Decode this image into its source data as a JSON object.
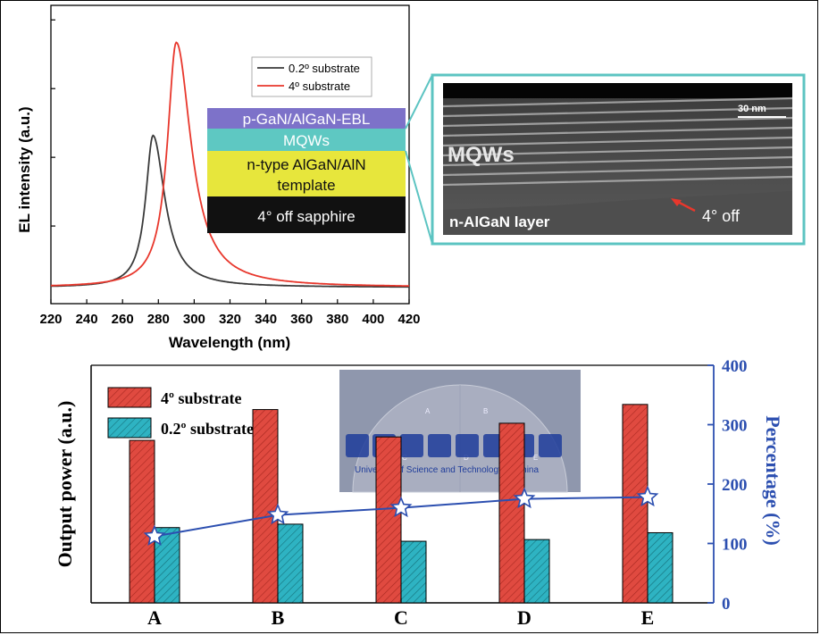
{
  "chart_data": [
    {
      "type": "line",
      "xlabel": "Wavelength (nm)",
      "ylabel": "EL intensity (a.u.)",
      "xlim": [
        220,
        420
      ],
      "xticks": [
        "220",
        "240",
        "260",
        "280",
        "300",
        "320",
        "340",
        "360",
        "380",
        "400",
        "420"
      ],
      "ylim": [
        0,
        1.05
      ],
      "legend_position": "top-right",
      "series": [
        {
          "name": "0.2º substrate",
          "color": "#3a3a3a",
          "peak": 277,
          "height": 0.62,
          "hwhm_left": 5,
          "hwhm_right": 8
        },
        {
          "name": "4º substrate",
          "color": "#e8372c",
          "peak": 290,
          "height": 1.0,
          "hwhm_left": 6,
          "hwhm_right": 10
        }
      ]
    },
    {
      "type": "bar",
      "categories": [
        "A",
        "B",
        "C",
        "D",
        "E"
      ],
      "ylabel": "Output power (a.u.)",
      "y2label": "Percentage (%)",
      "y2lim": [
        0,
        400
      ],
      "y2ticks": [
        "0",
        "100",
        "200",
        "300",
        "400"
      ],
      "legend_position": "top-left",
      "series": [
        {
          "name": "4º substrate",
          "color": "#e04a40",
          "values": [
            0.95,
            1.13,
            0.97,
            1.05,
            1.16
          ]
        },
        {
          "name": "0.2º substrate",
          "color": "#2eb3c2",
          "values": [
            0.44,
            0.46,
            0.36,
            0.37,
            0.41
          ]
        },
        {
          "name": "Percentage",
          "color": "#2c4fb0",
          "axis": "right",
          "values": [
            112,
            148,
            160,
            175,
            178
          ]
        }
      ]
    }
  ],
  "inset_layers": {
    "ebl": "p-GaN/AlGaN-EBL",
    "mqws": "MQWs",
    "ntype_line1": "n-type AlGaN/AlN",
    "ntype_line2": "template",
    "sapphire": "4°  off sapphire"
  },
  "tem": {
    "mqws": "MQWs",
    "scale": "30 nm",
    "layer": "n-AlGaN layer",
    "off": "4°  off"
  },
  "photo": {
    "chip_a": "A",
    "chip_b": "B",
    "chip_c": "C",
    "chip_d": "D",
    "chip_e": "E",
    "university_name": "University of Science and Technology of China"
  },
  "colors": {
    "ebl": "#7d72c9",
    "mqws": "#5ec8c2",
    "ntype": "#e7e63c",
    "sapphire": "#111111",
    "frame": "#5cc4c2"
  }
}
